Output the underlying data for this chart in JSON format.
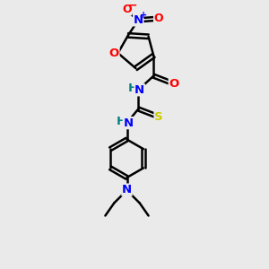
{
  "bg_color": "#eaeaea",
  "bond_color": "#000000",
  "bond_width": 1.8,
  "atom_colors": {
    "O": "#ff0000",
    "N": "#0000ff",
    "S": "#cccc00",
    "H": "#008080",
    "C": "#000000",
    "N_plus": "#0000ff",
    "O_minus": "#ff0000"
  },
  "font_size": 9.5,
  "fig_size": [
    3.0,
    3.0
  ],
  "dpi": 100
}
